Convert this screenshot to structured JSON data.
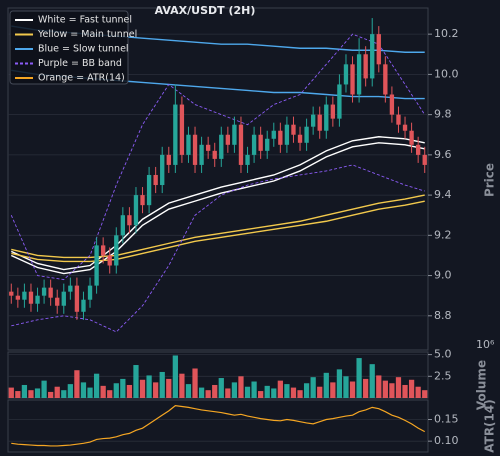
{
  "chart_data": [
    {
      "type": "candlestick",
      "title": "AVAX/USDT (2H)",
      "y_label": "Price",
      "up_color": "#26a69a",
      "down_color": "#e0555a",
      "open": [
        8.92,
        8.9,
        8.88,
        8.92,
        8.86,
        8.9,
        8.94,
        8.89,
        8.85,
        8.92,
        8.95,
        8.82,
        8.88,
        8.95,
        9.15,
        9.1,
        9.05,
        9.2,
        9.3,
        9.25,
        9.4,
        9.35,
        9.5,
        9.45,
        9.6,
        9.55,
        9.85,
        9.6,
        9.7,
        9.55,
        9.65,
        9.62,
        9.58,
        9.7,
        9.65,
        9.75,
        9.55,
        9.6,
        9.7,
        9.62,
        9.68,
        9.72,
        9.65,
        9.75,
        9.7,
        9.66,
        9.74,
        9.8,
        9.72,
        9.85,
        9.78,
        9.95,
        10.05,
        9.9,
        10.1,
        9.98,
        10.2,
        10.05,
        9.9,
        9.8,
        9.75,
        9.72,
        9.65,
        9.6
      ],
      "high": [
        8.96,
        8.94,
        8.96,
        8.96,
        8.94,
        8.98,
        8.98,
        8.93,
        8.96,
        8.99,
        8.99,
        8.92,
        8.99,
        9.19,
        9.19,
        9.14,
        9.24,
        9.34,
        9.34,
        9.44,
        9.44,
        9.54,
        9.54,
        9.64,
        9.64,
        9.95,
        9.89,
        9.74,
        9.74,
        9.69,
        9.69,
        9.66,
        9.74,
        9.74,
        9.79,
        9.79,
        9.64,
        9.74,
        9.74,
        9.72,
        9.76,
        9.76,
        9.79,
        9.79,
        9.74,
        9.78,
        9.84,
        9.84,
        9.89,
        9.89,
        10.0,
        10.1,
        10.09,
        10.18,
        10.14,
        10.28,
        10.24,
        10.09,
        9.94,
        9.84,
        9.79,
        9.76,
        9.69,
        9.64
      ],
      "low": [
        8.86,
        8.84,
        8.84,
        8.82,
        8.82,
        8.86,
        8.85,
        8.81,
        8.81,
        8.88,
        8.78,
        8.78,
        8.84,
        8.91,
        9.06,
        9.01,
        9.01,
        9.16,
        9.21,
        9.21,
        9.31,
        9.31,
        9.41,
        9.41,
        9.51,
        9.51,
        9.56,
        9.56,
        9.51,
        9.51,
        9.58,
        9.54,
        9.54,
        9.61,
        9.61,
        9.51,
        9.51,
        9.56,
        9.58,
        9.58,
        9.64,
        9.61,
        9.61,
        9.66,
        9.62,
        9.62,
        9.7,
        9.68,
        9.68,
        9.74,
        9.74,
        9.91,
        9.86,
        9.86,
        9.94,
        9.94,
        10.01,
        9.86,
        9.76,
        9.71,
        9.68,
        9.61,
        9.56,
        9.51
      ],
      "close": [
        8.9,
        8.88,
        8.92,
        8.86,
        8.9,
        8.94,
        8.89,
        8.85,
        8.92,
        8.95,
        8.82,
        8.88,
        8.95,
        9.15,
        9.1,
        9.05,
        9.2,
        9.3,
        9.25,
        9.4,
        9.35,
        9.5,
        9.45,
        9.6,
        9.55,
        9.85,
        9.6,
        9.7,
        9.55,
        9.65,
        9.62,
        9.58,
        9.7,
        9.65,
        9.75,
        9.55,
        9.6,
        9.7,
        9.62,
        9.68,
        9.72,
        9.65,
        9.75,
        9.7,
        9.66,
        9.74,
        9.8,
        9.72,
        9.85,
        9.78,
        9.95,
        10.05,
        9.9,
        10.1,
        9.98,
        10.2,
        10.05,
        9.9,
        9.8,
        9.75,
        9.72,
        9.65,
        9.6,
        9.55
      ],
      "series": [
        {
          "name": "White = Fast tunnel",
          "color": "#ffffff",
          "x": [
            0,
            4,
            8,
            12,
            16,
            20,
            24,
            28,
            32,
            36,
            40,
            44,
            48,
            52,
            56,
            60,
            63
          ],
          "upper": [
            9.12,
            9.06,
            9.03,
            9.05,
            9.15,
            9.28,
            9.36,
            9.4,
            9.44,
            9.47,
            9.5,
            9.55,
            9.62,
            9.67,
            9.69,
            9.68,
            9.66
          ],
          "lower": [
            9.1,
            9.04,
            9.01,
            9.03,
            9.12,
            9.25,
            9.33,
            9.37,
            9.41,
            9.44,
            9.47,
            9.52,
            9.59,
            9.64,
            9.66,
            9.65,
            9.63
          ]
        },
        {
          "name": "Yellow = Main tunnel",
          "color": "#f2c94c",
          "x": [
            0,
            4,
            8,
            12,
            16,
            20,
            24,
            28,
            32,
            36,
            40,
            44,
            48,
            52,
            56,
            60,
            63
          ],
          "upper": [
            9.13,
            9.1,
            9.09,
            9.09,
            9.1,
            9.13,
            9.16,
            9.19,
            9.21,
            9.23,
            9.25,
            9.27,
            9.3,
            9.33,
            9.36,
            9.38,
            9.4
          ],
          "lower": [
            9.11,
            9.08,
            9.07,
            9.07,
            9.08,
            9.11,
            9.14,
            9.17,
            9.19,
            9.21,
            9.23,
            9.25,
            9.27,
            9.3,
            9.33,
            9.35,
            9.37
          ]
        },
        {
          "name": "Blue = Slow tunnel",
          "color": "#4ea8ec",
          "x": [
            0,
            4,
            8,
            12,
            16,
            20,
            24,
            28,
            32,
            36,
            40,
            44,
            48,
            52,
            56,
            60,
            63
          ],
          "upper": [
            10.24,
            10.22,
            10.21,
            10.2,
            10.19,
            10.18,
            10.17,
            10.16,
            10.15,
            10.15,
            10.14,
            10.13,
            10.13,
            10.12,
            10.12,
            10.11,
            10.11
          ],
          "lower": [
            10.02,
            10.0,
            9.99,
            9.98,
            9.97,
            9.96,
            9.95,
            9.94,
            9.93,
            9.92,
            9.91,
            9.91,
            9.9,
            9.89,
            9.89,
            9.88,
            9.88
          ]
        },
        {
          "name": "Purple = BB band",
          "color": "#8b5cf6",
          "dashed": true,
          "x": [
            0,
            4,
            8,
            12,
            16,
            20,
            24,
            28,
            32,
            36,
            40,
            44,
            48,
            52,
            56,
            60,
            63
          ],
          "upper": [
            9.3,
            9.0,
            8.98,
            9.1,
            9.45,
            9.75,
            9.95,
            9.85,
            9.8,
            9.75,
            9.85,
            9.9,
            10.05,
            10.2,
            10.15,
            9.95,
            9.8
          ],
          "lower": [
            8.75,
            8.78,
            8.8,
            8.78,
            8.72,
            8.85,
            9.05,
            9.3,
            9.4,
            9.45,
            9.48,
            9.5,
            9.52,
            9.55,
            9.5,
            9.45,
            9.42
          ]
        }
      ],
      "ylim": [
        8.63,
        10.33
      ],
      "yticks": [
        8.8,
        {
          "value": 9.0,
          "label": "9.0"
        },
        9.2,
        9.4,
        9.6,
        9.8,
        {
          "value": 10.0,
          "label": "10.0"
        },
        10.2
      ],
      "grid": true
    },
    {
      "type": "bar",
      "y_label": "Volume",
      "offset_label": "10⁶",
      "values": [
        1.2,
        0.8,
        1.5,
        0.9,
        1.1,
        2.0,
        0.7,
        1.3,
        0.9,
        1.6,
        3.2,
        1.8,
        1.2,
        2.8,
        1.4,
        0.9,
        1.7,
        2.2,
        1.5,
        3.8,
        2.1,
        2.6,
        1.8,
        3.0,
        2.2,
        4.9,
        2.8,
        1.6,
        3.4,
        1.2,
        0.9,
        1.5,
        2.3,
        1.1,
        1.8,
        2.5,
        1.3,
        1.9,
        0.8,
        1.4,
        1.1,
        2.0,
        1.6,
        1.2,
        0.9,
        1.7,
        2.4,
        1.3,
        2.9,
        1.8,
        3.3,
        2.5,
        1.9,
        4.6,
        2.2,
        3.9,
        2.6,
        2.0,
        1.7,
        2.4,
        1.5,
        2.1,
        1.3,
        0.9
      ],
      "ylim": [
        0,
        5.3
      ],
      "yticks": [
        2.5,
        {
          "value": 5,
          "label": "5.0"
        }
      ],
      "grid": true
    },
    {
      "type": "line",
      "y_label": "ATR(14)",
      "series": [
        {
          "name": "Orange = ATR(14)",
          "color": "#f5a623",
          "values": [
            0.095,
            0.093,
            0.092,
            0.091,
            0.09,
            0.09,
            0.089,
            0.089,
            0.09,
            0.091,
            0.093,
            0.095,
            0.098,
            0.104,
            0.106,
            0.107,
            0.11,
            0.115,
            0.118,
            0.125,
            0.13,
            0.14,
            0.15,
            0.16,
            0.17,
            0.182,
            0.18,
            0.178,
            0.175,
            0.172,
            0.17,
            0.168,
            0.166,
            0.163,
            0.16,
            0.162,
            0.158,
            0.155,
            0.152,
            0.15,
            0.148,
            0.147,
            0.15,
            0.148,
            0.145,
            0.142,
            0.14,
            0.145,
            0.15,
            0.152,
            0.155,
            0.158,
            0.16,
            0.168,
            0.172,
            0.178,
            0.175,
            0.168,
            0.16,
            0.155,
            0.148,
            0.14,
            0.13,
            0.122
          ]
        }
      ],
      "ylim": [
        0.075,
        0.195
      ],
      "yticks": [
        {
          "value": 0.1,
          "label": "0.10"
        },
        {
          "value": 0.15,
          "label": "0.15"
        }
      ],
      "grid": true
    }
  ]
}
